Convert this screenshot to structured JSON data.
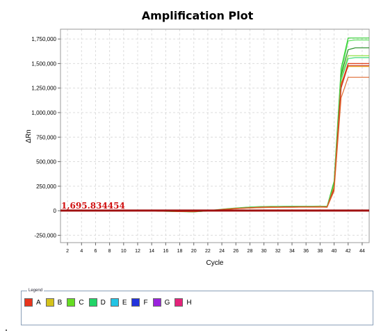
{
  "chart_data": {
    "type": "line",
    "title": "Amplification Plot",
    "xlabel": "Cycle",
    "ylabel": "ΔRn",
    "xlim": [
      1,
      45
    ],
    "ylim": [
      -325000,
      1850000
    ],
    "xticks": [
      2,
      4,
      6,
      8,
      10,
      12,
      14,
      16,
      18,
      20,
      22,
      24,
      26,
      28,
      30,
      32,
      34,
      36,
      38,
      40,
      42,
      44
    ],
    "yticks": [
      -250000,
      0,
      250000,
      500000,
      750000,
      1000000,
      1250000,
      1500000,
      1750000
    ],
    "ytick_labels": [
      "-250,000",
      "0",
      "250,000",
      "500,000",
      "750,000",
      "1,000,000",
      "1,250,000",
      "1,500,000",
      "1,750,000"
    ],
    "grid": true,
    "threshold": {
      "value": 1695.834454,
      "label": "1,695.834454",
      "color": "#a01010"
    },
    "x": [
      1,
      2,
      3,
      4,
      5,
      6,
      7,
      8,
      9,
      10,
      11,
      12,
      13,
      14,
      15,
      16,
      17,
      18,
      19,
      20,
      21,
      22,
      23,
      24,
      25,
      26,
      27,
      28,
      29,
      30,
      31,
      32,
      33,
      34,
      35,
      36,
      37,
      38,
      39,
      40,
      41,
      42,
      43,
      44,
      45
    ],
    "series": [
      {
        "color": "#2ccf2c",
        "values": [
          0,
          0,
          0,
          0,
          0,
          0,
          0,
          0,
          0,
          0,
          0,
          0,
          0,
          0,
          -3000,
          -5000,
          -6000,
          -8000,
          -9000,
          -10000,
          -5000,
          0,
          8000,
          15000,
          22000,
          28000,
          33000,
          38000,
          41000,
          43000,
          44000,
          45000,
          45000,
          46000,
          46000,
          46000,
          46000,
          47000,
          45000,
          300000,
          1450000,
          1760000,
          1760000,
          1760000,
          1760000
        ]
      },
      {
        "color": "#5fe05f",
        "values": [
          0,
          0,
          0,
          0,
          0,
          0,
          0,
          0,
          0,
          0,
          0,
          0,
          0,
          0,
          -4000,
          -6000,
          -7000,
          -9000,
          -10000,
          -12000,
          -7000,
          -2000,
          5000,
          12000,
          19000,
          25000,
          30000,
          35000,
          38000,
          40000,
          41000,
          42000,
          43000,
          43000,
          44000,
          44000,
          44000,
          45000,
          43000,
          280000,
          1400000,
          1730000,
          1740000,
          1740000,
          1740000
        ]
      },
      {
        "color": "#208a20",
        "values": [
          0,
          0,
          0,
          0,
          0,
          0,
          0,
          0,
          0,
          0,
          0,
          0,
          0,
          0,
          -3000,
          -5000,
          -6000,
          -8000,
          -9000,
          -11000,
          -6000,
          -1000,
          6000,
          13000,
          20000,
          26000,
          31000,
          36000,
          39000,
          41000,
          42000,
          43000,
          44000,
          44000,
          45000,
          45000,
          45000,
          46000,
          44000,
          270000,
          1380000,
          1640000,
          1660000,
          1660000,
          1660000
        ]
      },
      {
        "color": "#90e040",
        "values": [
          0,
          0,
          0,
          0,
          0,
          0,
          0,
          0,
          0,
          0,
          0,
          0,
          0,
          0,
          -4000,
          -5000,
          -7000,
          -8000,
          -10000,
          -11000,
          -6000,
          -1000,
          6000,
          13000,
          20000,
          26000,
          31000,
          36000,
          39000,
          41000,
          42000,
          43000,
          44000,
          44000,
          45000,
          45000,
          45000,
          46000,
          44000,
          260000,
          1350000,
          1580000,
          1580000,
          1580000,
          1580000
        ]
      },
      {
        "color": "#3cdc78",
        "values": [
          0,
          0,
          0,
          0,
          0,
          0,
          0,
          0,
          0,
          0,
          0,
          0,
          0,
          0,
          -4000,
          -6000,
          -7000,
          -9000,
          -10000,
          -12000,
          -7000,
          -2000,
          5000,
          12000,
          19000,
          25000,
          30000,
          35000,
          38000,
          40000,
          41000,
          42000,
          43000,
          43000,
          44000,
          44000,
          44000,
          45000,
          43000,
          250000,
          1330000,
          1550000,
          1560000,
          1560000,
          1560000
        ]
      },
      {
        "color": "#e8a020",
        "values": [
          0,
          0,
          0,
          0,
          0,
          0,
          0,
          0,
          0,
          0,
          0,
          0,
          0,
          0,
          -3000,
          -5000,
          -6000,
          -8000,
          -9000,
          -10000,
          -5000,
          0,
          6000,
          12000,
          18000,
          23000,
          27000,
          31000,
          34000,
          36000,
          37000,
          38000,
          39000,
          39000,
          40000,
          40000,
          40000,
          41000,
          39000,
          240000,
          1300000,
          1470000,
          1470000,
          1470000,
          1470000
        ]
      },
      {
        "color": "#e03c1a",
        "values": [
          0,
          0,
          0,
          0,
          0,
          0,
          0,
          0,
          0,
          0,
          0,
          0,
          0,
          0,
          -3000,
          -5000,
          -6000,
          -8000,
          -9000,
          -10000,
          -5000,
          0,
          6000,
          12000,
          18000,
          23000,
          27000,
          31000,
          34000,
          36000,
          37000,
          38000,
          39000,
          39000,
          40000,
          40000,
          40000,
          41000,
          39000,
          230000,
          1280000,
          1500000,
          1500000,
          1500000,
          1500000
        ]
      },
      {
        "color": "#c8341c",
        "values": [
          0,
          0,
          0,
          0,
          0,
          0,
          0,
          0,
          0,
          0,
          0,
          0,
          0,
          0,
          -3000,
          -4000,
          -5000,
          -7000,
          -8000,
          -9000,
          -4000,
          0,
          5000,
          11000,
          16000,
          21000,
          25000,
          28000,
          31000,
          33000,
          34000,
          35000,
          36000,
          36000,
          37000,
          37000,
          37000,
          38000,
          36000,
          220000,
          1250000,
          1480000,
          1480000,
          1480000,
          1480000
        ]
      },
      {
        "color": "#e06a30",
        "values": [
          0,
          0,
          0,
          0,
          0,
          0,
          0,
          0,
          0,
          0,
          0,
          0,
          0,
          0,
          -3000,
          -4000,
          -5000,
          -7000,
          -8000,
          -9000,
          -4000,
          0,
          5000,
          10000,
          15000,
          20000,
          24000,
          27000,
          30000,
          32000,
          33000,
          34000,
          35000,
          35000,
          36000,
          36000,
          36000,
          37000,
          35000,
          200000,
          1150000,
          1360000,
          1360000,
          1360000,
          1360000
        ]
      }
    ],
    "legend": {
      "caption": "Legend",
      "position": "bottom",
      "entries": [
        {
          "label": "A",
          "color": "#e8341c"
        },
        {
          "label": "B",
          "color": "#d4c21a"
        },
        {
          "label": "C",
          "color": "#66dd22"
        },
        {
          "label": "D",
          "color": "#22d468"
        },
        {
          "label": "E",
          "color": "#22c4e4"
        },
        {
          "label": "F",
          "color": "#2233dd"
        },
        {
          "label": "G",
          "color": "#9a22dd"
        },
        {
          "label": "H",
          "color": "#e4227a"
        }
      ]
    }
  }
}
